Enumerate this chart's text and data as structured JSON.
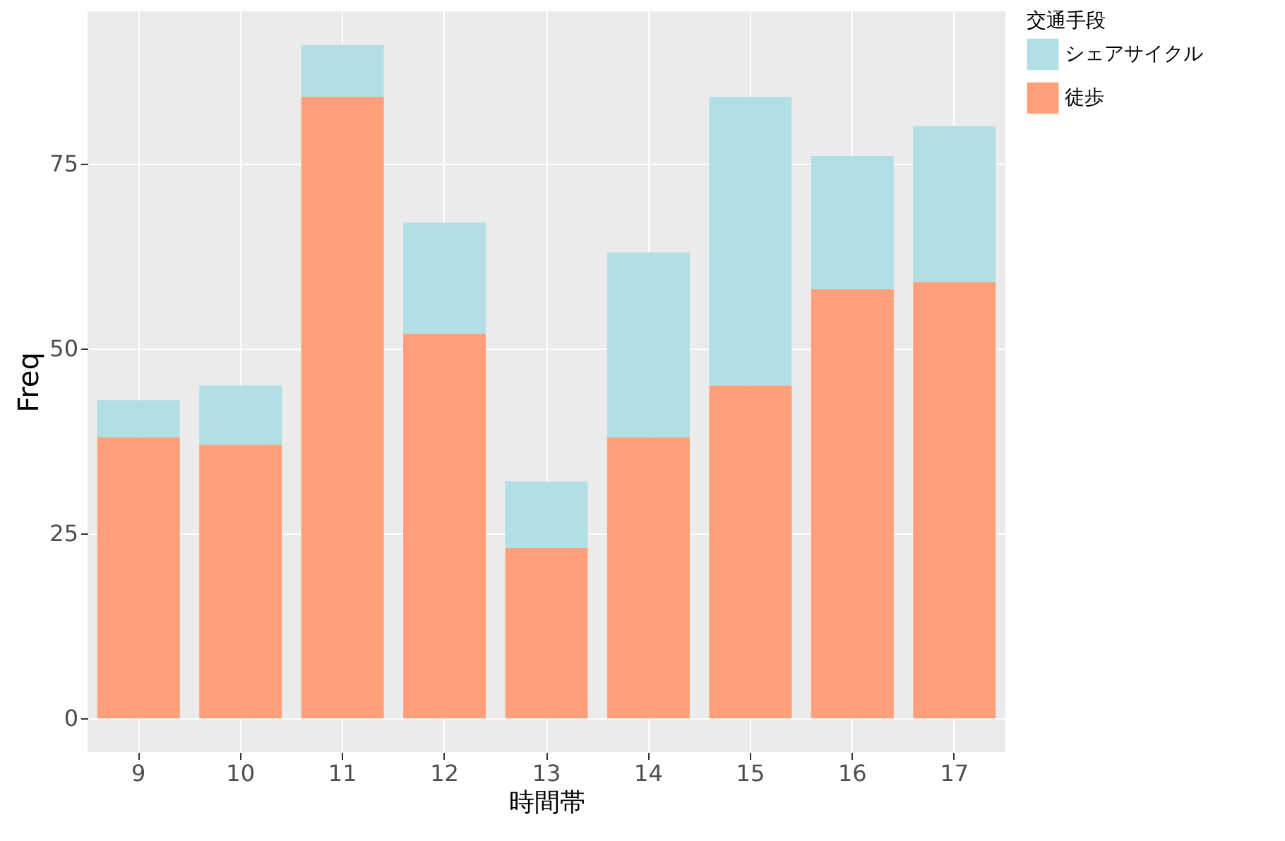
{
  "chart_data": {
    "type": "bar",
    "stacked": true,
    "xlabel": "時間帯",
    "ylabel": "Freq",
    "legend_title": "交通手段",
    "categories": [
      "9",
      "10",
      "11",
      "12",
      "13",
      "14",
      "15",
      "16",
      "17"
    ],
    "series": [
      {
        "name": "徒歩",
        "color": "#ffa07a",
        "values": [
          38,
          37,
          84,
          52,
          23,
          38,
          45,
          58,
          59
        ]
      },
      {
        "name": "シェアサイクル",
        "color": "#b0dfe5",
        "values": [
          5,
          8,
          7,
          15,
          9,
          25,
          39,
          18,
          21
        ]
      }
    ],
    "ylim": [
      -4.55,
      95.55
    ],
    "yticks": [
      0,
      25,
      50,
      75
    ],
    "grid": true,
    "legend": "right"
  }
}
